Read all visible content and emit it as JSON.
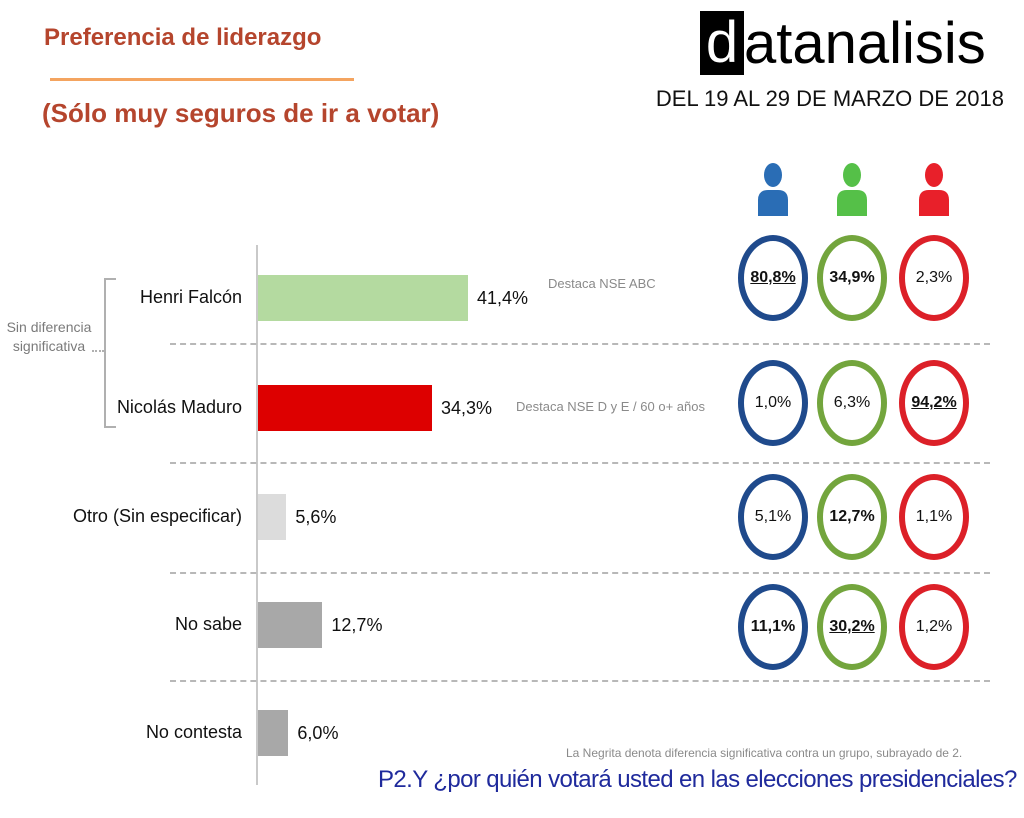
{
  "header": {
    "title": "Preferencia de liderazgo",
    "subtitle": "(Sólo muy seguros de ir a votar)",
    "logo_first_letter": "d",
    "logo_rest": "atanalisis",
    "date_range": "DEL 19 AL 29 DE MARZO DE 2018"
  },
  "chart_data": {
    "type": "bar",
    "orientation": "horizontal",
    "title": "Preferencia de liderazgo",
    "subtitle": "(Sólo muy seguros de ir a votar)",
    "categories": [
      "Henri Falcón",
      "Nicolás Maduro",
      "Otro (Sin especificar)",
      "No sabe",
      "No contesta"
    ],
    "values": [
      41.4,
      34.3,
      5.6,
      12.7,
      6.0
    ],
    "value_labels": [
      "41,4%",
      "34,3%",
      "5,6%",
      "12,7%",
      "6,0%"
    ],
    "bar_colors": [
      "#b4daa0",
      "#dd0000",
      "#dcdcdc",
      "#a8a8a8",
      "#a8a8a8"
    ],
    "xlim": [
      0,
      100
    ],
    "notes": [
      {
        "category": "Henri Falcón",
        "text": "Destaca NSE ABC"
      },
      {
        "category": "Nicolás Maduro",
        "text": "Destaca NSE D y E / 60 o+ años"
      }
    ],
    "bracket_label": "Sin diferencia significativa",
    "segments": [
      {
        "name": "blue",
        "color": "#2a6db5",
        "ring": "#1f4a8c"
      },
      {
        "name": "green",
        "color": "#55c048",
        "ring": "#73a53d"
      },
      {
        "name": "red",
        "color": "#e8202a",
        "ring": "#dc2028"
      }
    ],
    "segment_values": [
      [
        {
          "text": "80,8%",
          "bold": true,
          "underline": true
        },
        {
          "text": "34,9%",
          "bold": true,
          "underline": false
        },
        {
          "text": "2,3%",
          "bold": false,
          "underline": false
        }
      ],
      [
        {
          "text": "1,0%",
          "bold": false,
          "underline": false
        },
        {
          "text": "6,3%",
          "bold": false,
          "underline": false
        },
        {
          "text": "94,2%",
          "bold": true,
          "underline": true
        }
      ],
      [
        {
          "text": "5,1%",
          "bold": false,
          "underline": false
        },
        {
          "text": "12,7%",
          "bold": true,
          "underline": false
        },
        {
          "text": "1,1%",
          "bold": false,
          "underline": false
        }
      ],
      [
        {
          "text": "11,1%",
          "bold": true,
          "underline": false
        },
        {
          "text": "30,2%",
          "bold": true,
          "underline": true
        },
        {
          "text": "1,2%",
          "bold": false,
          "underline": false
        }
      ]
    ],
    "footnote": "La Negrita denota diferencia significativa contra un grupo, subrayado de 2.",
    "question": "P2.Y ¿por quién votará usted en las elecciones presidenciales?"
  }
}
